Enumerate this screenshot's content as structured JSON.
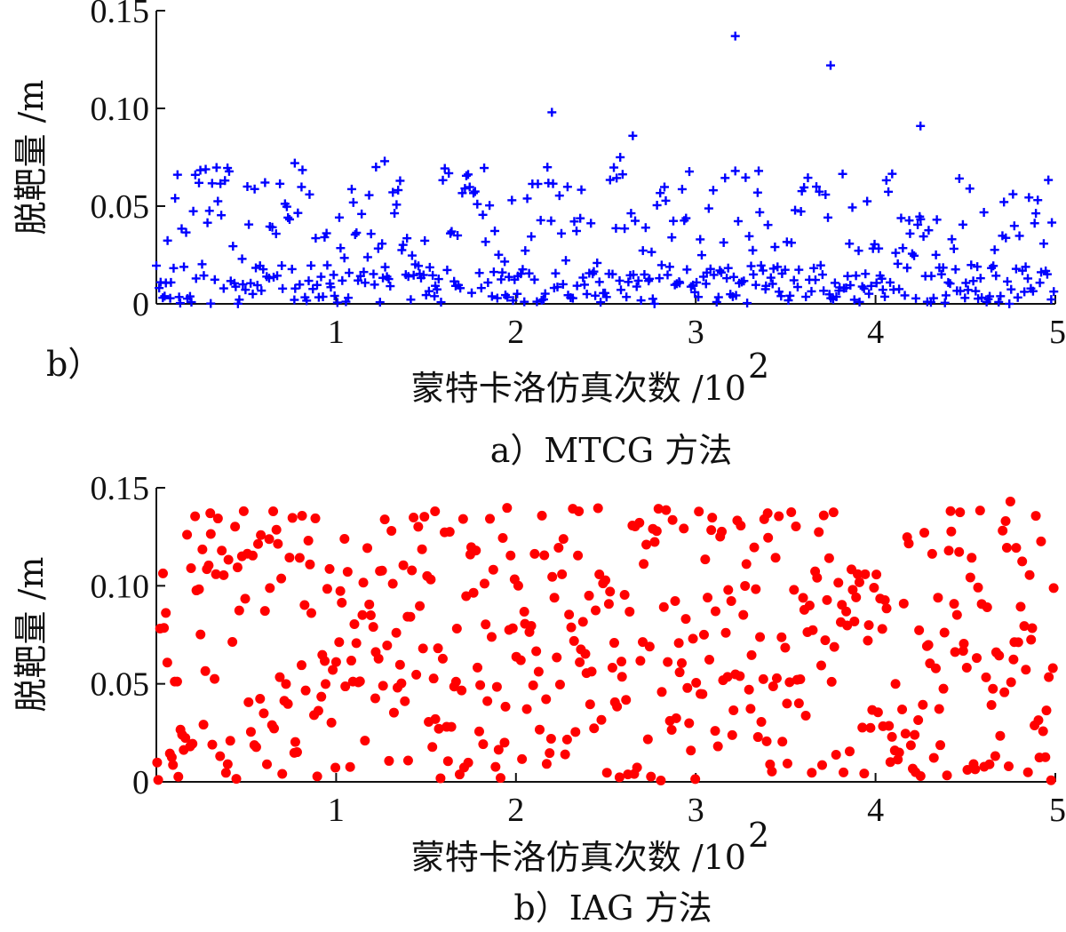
{
  "chart_data": [
    {
      "type": "scatter",
      "panel_id": "top",
      "ylabel": "脱靶量 /m",
      "xlabel": "蒙特卡洛仿真次数 /10²",
      "xlabel_main": "蒙特卡洛仿真次数 /10",
      "xlabel_exp": "2",
      "side_label": "b）",
      "caption": "a）MTCG 方法",
      "xlim": [
        0,
        5
      ],
      "ylim": [
        0,
        0.15
      ],
      "x_ticks": [
        1,
        2,
        3,
        4,
        5
      ],
      "y_ticks": [
        0,
        0.05,
        0.1,
        0.15
      ],
      "x_tick_labels": [
        "1",
        "2",
        "3",
        "4",
        "5"
      ],
      "y_tick_labels": [
        "0",
        "0.05",
        "0.10",
        "0.15"
      ],
      "marker": "plus",
      "color": "#0000ff",
      "outliers": [
        [
          2.2,
          0.098
        ],
        [
          2.65,
          0.086
        ],
        [
          3.22,
          0.137
        ],
        [
          3.75,
          0.122
        ],
        [
          4.25,
          0.091
        ],
        [
          2.58,
          0.075
        ],
        [
          1.27,
          0.073
        ],
        [
          0.77,
          0.072
        ],
        [
          3.22,
          0.068
        ],
        [
          3.35,
          0.068
        ]
      ],
      "n_points": 500,
      "seed": 7,
      "bands": [
        [
          0.0,
          0.02,
          0.6
        ],
        [
          0.02,
          0.07,
          0.4
        ]
      ]
    },
    {
      "type": "scatter",
      "panel_id": "bottom",
      "ylabel": "脱靶量 /m",
      "xlabel": "蒙特卡洛仿真次数 /10²",
      "xlabel_main": "蒙特卡洛仿真次数 /10",
      "xlabel_exp": "2",
      "caption": "b）IAG 方法",
      "xlim": [
        0,
        5
      ],
      "ylim": [
        0,
        0.15
      ],
      "x_ticks": [
        1,
        2,
        3,
        4,
        5
      ],
      "y_ticks": [
        0,
        0.05,
        0.1,
        0.15
      ],
      "x_tick_labels": [
        "1",
        "2",
        "3",
        "4",
        "5"
      ],
      "y_tick_labels": [
        "0",
        "0.05",
        "0.10",
        "0.15"
      ],
      "marker": "dot",
      "color": "#ff0000",
      "outliers": [
        [
          4.75,
          0.143
        ],
        [
          2.35,
          0.138
        ],
        [
          1.55,
          0.138
        ],
        [
          0.65,
          0.138
        ],
        [
          0.3,
          0.137
        ],
        [
          3.4,
          0.137
        ]
      ],
      "n_points": 500,
      "seed": 13,
      "bands": [
        [
          0.0,
          0.14,
          1.0
        ]
      ]
    }
  ]
}
